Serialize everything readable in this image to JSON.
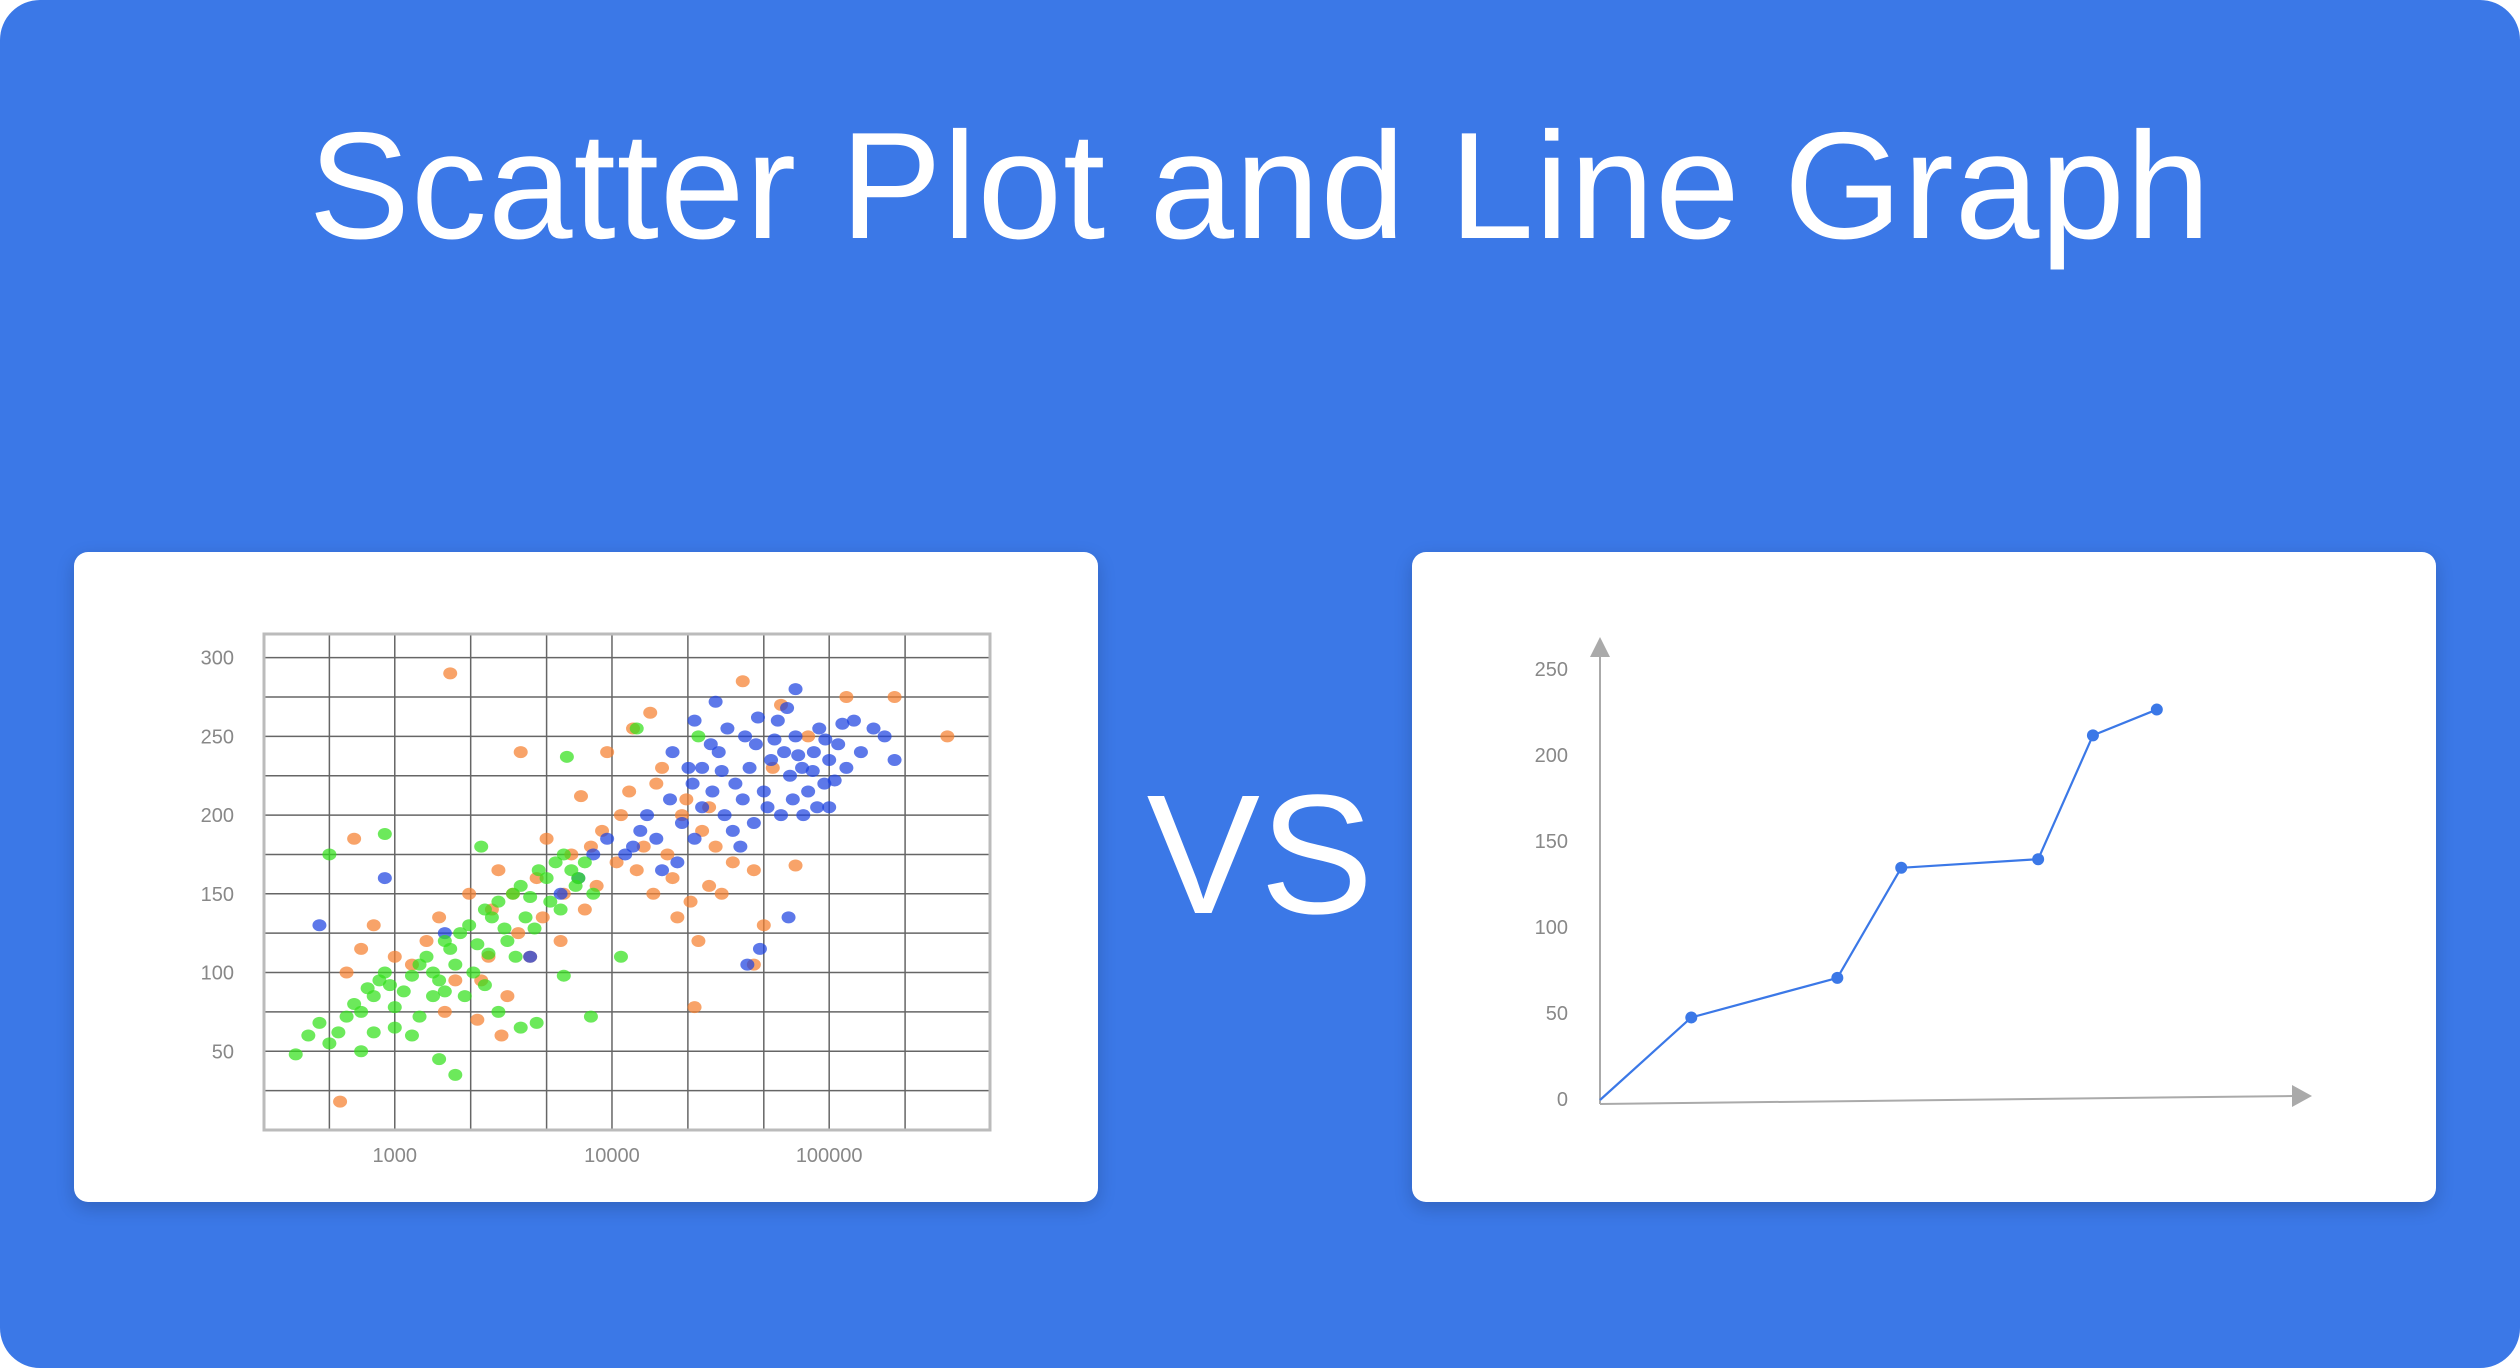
{
  "title": "Scatter Plot and Line Graph",
  "vs_label": "VS",
  "colors": {
    "background": "#3b78e7",
    "scatter_blue": "#1f44e0",
    "scatter_orange": "#f57f2f",
    "scatter_green": "#33e01c",
    "line": "#3b78e7"
  },
  "chart_data": [
    {
      "type": "scatter",
      "x_scale": "log",
      "xlim": [
        250,
        550000
      ],
      "ylim": [
        0,
        315
      ],
      "x_ticks": [
        1000,
        10000,
        100000
      ],
      "x_tick_labels": [
        "1000",
        "10000",
        "100000"
      ],
      "y_ticks": [
        50,
        100,
        150,
        200,
        250,
        300
      ],
      "y_tick_labels": [
        "50",
        "100",
        "150",
        "200",
        "250",
        "300"
      ],
      "grid": true,
      "series": [
        {
          "color": "#f57f2f",
          "points": [
            [
              1800,
              290
            ],
            [
              3800,
              240
            ],
            [
              7200,
              212
            ],
            [
              9500,
              240
            ],
            [
              12500,
              255
            ],
            [
              16000,
              220
            ],
            [
              21000,
              200
            ],
            [
              28000,
              205
            ],
            [
              40000,
              285
            ],
            [
              60000,
              270
            ],
            [
              120000,
              275
            ],
            [
              200000,
              275
            ],
            [
              350000,
              250
            ],
            [
              14000,
              180
            ],
            [
              18000,
              175
            ],
            [
              26000,
              190
            ],
            [
              45000,
              165
            ],
            [
              70000,
              168
            ],
            [
              50000,
              130
            ],
            [
              32000,
              150
            ],
            [
              20000,
              135
            ],
            [
              25000,
              120
            ],
            [
              13000,
              165
            ],
            [
              11000,
              200
            ],
            [
              9000,
              190
            ],
            [
              6500,
              175
            ],
            [
              5000,
              185
            ],
            [
              4500,
              160
            ],
            [
              3500,
              150
            ],
            [
              3000,
              165
            ],
            [
              2800,
              140
            ],
            [
              2200,
              150
            ],
            [
              1600,
              135
            ],
            [
              1400,
              120
            ],
            [
              1200,
              105
            ],
            [
              1000,
              110
            ],
            [
              800,
              130
            ],
            [
              700,
              115
            ],
            [
              650,
              185
            ],
            [
              600,
              100
            ],
            [
              560,
              18
            ],
            [
              2500,
              95
            ],
            [
              3300,
              85
            ],
            [
              4200,
              110
            ],
            [
              5800,
              120
            ],
            [
              7500,
              140
            ],
            [
              8500,
              155
            ],
            [
              10500,
              170
            ],
            [
              15500,
              150
            ],
            [
              19000,
              160
            ],
            [
              23000,
              145
            ],
            [
              28000,
              155
            ],
            [
              36000,
              170
            ],
            [
              30000,
              180
            ],
            [
              22000,
              210
            ],
            [
              17000,
              230
            ],
            [
              12000,
              215
            ],
            [
              8000,
              180
            ],
            [
              6000,
              150
            ],
            [
              4800,
              135
            ],
            [
              3700,
              125
            ],
            [
              2700,
              110
            ],
            [
              1900,
              95
            ],
            [
              1700,
              75
            ],
            [
              2400,
              70
            ],
            [
              3100,
              60
            ],
            [
              24000,
              78
            ],
            [
              45000,
              105
            ],
            [
              55000,
              230
            ],
            [
              80000,
              250
            ],
            [
              15000,
              265
            ]
          ]
        },
        {
          "color": "#1f44e0",
          "points": [
            [
              450,
              130
            ],
            [
              900,
              160
            ],
            [
              1700,
              125
            ],
            [
              4200,
              110
            ],
            [
              5800,
              150
            ],
            [
              7000,
              160
            ],
            [
              8200,
              175
            ],
            [
              9500,
              185
            ],
            [
              11500,
              175
            ],
            [
              13500,
              190
            ],
            [
              16000,
              185
            ],
            [
              18500,
              210
            ],
            [
              21000,
              195
            ],
            [
              23500,
              220
            ],
            [
              26000,
              230
            ],
            [
              28500,
              245
            ],
            [
              31000,
              240
            ],
            [
              34000,
              255
            ],
            [
              37000,
              220
            ],
            [
              40000,
              210
            ],
            [
              43000,
              230
            ],
            [
              46000,
              245
            ],
            [
              50000,
              215
            ],
            [
              54000,
              235
            ],
            [
              58000,
              260
            ],
            [
              62000,
              240
            ],
            [
              66000,
              225
            ],
            [
              70000,
              250
            ],
            [
              75000,
              230
            ],
            [
              80000,
              215
            ],
            [
              85000,
              240
            ],
            [
              90000,
              255
            ],
            [
              95000,
              220
            ],
            [
              100000,
              235
            ],
            [
              110000,
              245
            ],
            [
              120000,
              230
            ],
            [
              130000,
              260
            ],
            [
              140000,
              240
            ],
            [
              160000,
              255
            ],
            [
              180000,
              250
            ],
            [
              200000,
              235
            ],
            [
              70000,
              280
            ],
            [
              30000,
              272
            ],
            [
              26000,
              205
            ],
            [
              33000,
              200
            ],
            [
              36000,
              190
            ],
            [
              39000,
              180
            ],
            [
              45000,
              195
            ],
            [
              52000,
              205
            ],
            [
              60000,
              200
            ],
            [
              68000,
              210
            ],
            [
              76000,
              200
            ],
            [
              88000,
              205
            ],
            [
              100000,
              205
            ],
            [
              65000,
              135
            ],
            [
              48000,
              115
            ],
            [
              42000,
              105
            ],
            [
              20000,
              170
            ],
            [
              17000,
              165
            ],
            [
              14500,
              200
            ],
            [
              12500,
              180
            ],
            [
              24000,
              185
            ],
            [
              29000,
              215
            ],
            [
              32000,
              228
            ],
            [
              41000,
              250
            ],
            [
              47000,
              262
            ],
            [
              56000,
              248
            ],
            [
              64000,
              268
            ],
            [
              72000,
              238
            ],
            [
              84000,
              228
            ],
            [
              96000,
              248
            ],
            [
              106000,
              222
            ],
            [
              115000,
              258
            ],
            [
              24000,
              260
            ],
            [
              19000,
              240
            ],
            [
              22500,
              230
            ]
          ]
        },
        {
          "color": "#33e01c",
          "points": [
            [
              350,
              48
            ],
            [
              400,
              60
            ],
            [
              450,
              68
            ],
            [
              500,
              55
            ],
            [
              550,
              62
            ],
            [
              600,
              72
            ],
            [
              650,
              80
            ],
            [
              700,
              75
            ],
            [
              750,
              90
            ],
            [
              800,
              85
            ],
            [
              850,
              95
            ],
            [
              900,
              100
            ],
            [
              950,
              92
            ],
            [
              1000,
              78
            ],
            [
              1100,
              88
            ],
            [
              1200,
              98
            ],
            [
              1300,
              105
            ],
            [
              1400,
              110
            ],
            [
              1500,
              100
            ],
            [
              1600,
              95
            ],
            [
              1700,
              120
            ],
            [
              1800,
              115
            ],
            [
              1900,
              105
            ],
            [
              2000,
              125
            ],
            [
              2200,
              130
            ],
            [
              2400,
              118
            ],
            [
              2600,
              140
            ],
            [
              2800,
              135
            ],
            [
              3000,
              145
            ],
            [
              3200,
              128
            ],
            [
              3500,
              150
            ],
            [
              3800,
              155
            ],
            [
              4200,
              148
            ],
            [
              4600,
              165
            ],
            [
              5000,
              160
            ],
            [
              5500,
              170
            ],
            [
              6000,
              175
            ],
            [
              6500,
              165
            ],
            [
              7000,
              160
            ],
            [
              7500,
              170
            ],
            [
              3000,
              75
            ],
            [
              3800,
              65
            ],
            [
              4500,
              68
            ],
            [
              6000,
              98
            ],
            [
              8000,
              72
            ],
            [
              11000,
              110
            ],
            [
              13000,
              255
            ],
            [
              6200,
              237
            ],
            [
              2500,
              180
            ],
            [
              1900,
              35
            ],
            [
              1600,
              45
            ],
            [
              900,
              188
            ],
            [
              500,
              175
            ],
            [
              1200,
              60
            ],
            [
              2100,
              85
            ],
            [
              2300,
              100
            ],
            [
              2700,
              112
            ],
            [
              3300,
              120
            ],
            [
              4000,
              135
            ],
            [
              5200,
              145
            ],
            [
              700,
              50
            ],
            [
              800,
              62
            ],
            [
              1000,
              65
            ],
            [
              1300,
              72
            ],
            [
              1500,
              85
            ],
            [
              1700,
              88
            ],
            [
              2600,
              92
            ],
            [
              3600,
              110
            ],
            [
              4400,
              128
            ],
            [
              5800,
              140
            ],
            [
              6800,
              155
            ],
            [
              8200,
              150
            ],
            [
              25000,
              250
            ]
          ]
        }
      ]
    },
    {
      "type": "line",
      "xlim": [
        0,
        7.8
      ],
      "ylim": [
        0,
        250
      ],
      "y_ticks": [
        0,
        50,
        100,
        150,
        200,
        250
      ],
      "y_tick_labels": [
        "0",
        "50",
        "100",
        "150",
        "200",
        "250"
      ],
      "grid": false,
      "series": [
        {
          "color": "#3b78e7",
          "points": [
            [
              0,
              0
            ],
            [
              1,
              48
            ],
            [
              2.6,
              71
            ],
            [
              3.3,
              135
            ],
            [
              4.8,
              140
            ],
            [
              5.4,
              212
            ],
            [
              6.1,
              227
            ]
          ]
        }
      ]
    }
  ]
}
